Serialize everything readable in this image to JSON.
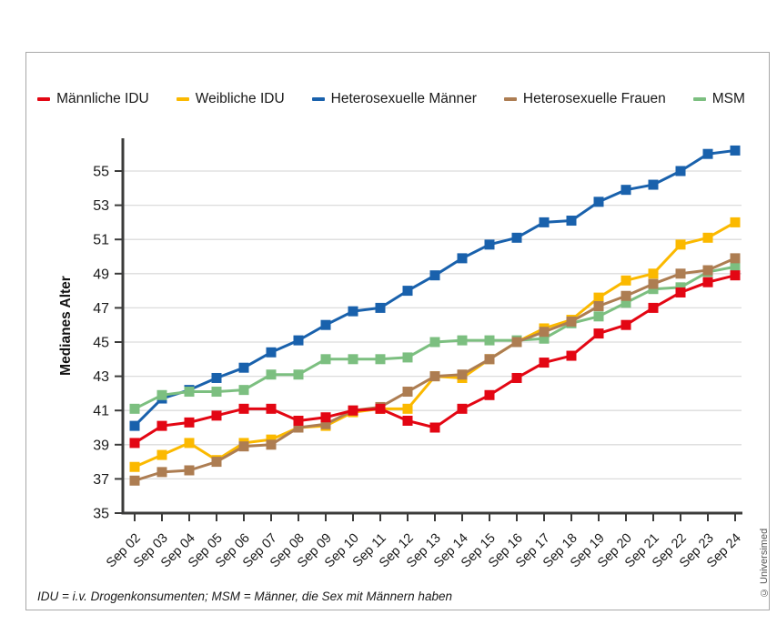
{
  "legend_note": "legend labels come from chart_data.series names",
  "footnote": "IDU = i.v. Drogenkonsumenten; MSM = Männer, die Sex mit Männern haben",
  "credit": "© Universimed",
  "chart_data": {
    "type": "line",
    "title": "",
    "xlabel": "",
    "ylabel": "Medianes Alter",
    "ylim": [
      35,
      56.8
    ],
    "yticks": [
      35,
      37,
      39,
      41,
      43,
      45,
      47,
      49,
      51,
      53,
      55
    ],
    "grid": true,
    "legend_position": "top",
    "marker": "square",
    "axis_color": "#3b3b3a",
    "gridline_color": "#dcdcdc",
    "tick_label_color": "#1a1a1a",
    "categories": [
      "Sep 02",
      "Sep 03",
      "Sep 04",
      "Sep 05",
      "Sep 06",
      "Sep 07",
      "Sep 08",
      "Sep 09",
      "Sep 10",
      "Sep 11",
      "Sep 12",
      "Sep 13",
      "Sep 14",
      "Sep 15",
      "Sep 16",
      "Sep 17",
      "Sep 18",
      "Sep 19",
      "Sep 20",
      "Sep 21",
      "Sep 22",
      "Sep 23",
      "Sep 24"
    ],
    "series": [
      {
        "name": "Männliche IDU",
        "color": "#e30613",
        "values": [
          39.1,
          40.1,
          40.3,
          40.7,
          41.1,
          41.1,
          40.4,
          40.6,
          41.0,
          41.1,
          40.4,
          40.0,
          41.1,
          41.9,
          42.9,
          43.8,
          44.2,
          45.5,
          46.0,
          47.0,
          47.9,
          48.5,
          48.9
        ]
      },
      {
        "name": "Weibliche IDU",
        "color": "#fbb900",
        "values": [
          37.7,
          38.4,
          39.1,
          38.1,
          39.1,
          39.3,
          40.0,
          40.1,
          40.9,
          41.1,
          41.1,
          43.0,
          42.9,
          44.0,
          45.0,
          45.8,
          46.3,
          47.6,
          48.6,
          49.0,
          50.7,
          51.1,
          52.0
        ]
      },
      {
        "name": "Heterosexuelle Männer",
        "color": "#1961ac",
        "values": [
          40.1,
          41.7,
          42.2,
          42.9,
          43.5,
          44.4,
          45.1,
          46.0,
          46.8,
          47.0,
          48.0,
          48.9,
          49.9,
          50.7,
          51.1,
          52.0,
          52.1,
          53.2,
          53.9,
          54.2,
          55.0,
          56.0,
          56.2
        ]
      },
      {
        "name": "Heterosexuelle Frauen",
        "color": "#ad7d52",
        "values": [
          36.9,
          37.4,
          37.5,
          38.0,
          38.9,
          39.0,
          40.0,
          40.2,
          41.0,
          41.2,
          42.1,
          43.0,
          43.1,
          44.0,
          45.0,
          45.6,
          46.2,
          47.1,
          47.7,
          48.4,
          49.0,
          49.2,
          49.9
        ]
      },
      {
        "name": "MSM",
        "color": "#7cbf80",
        "values": [
          41.1,
          41.9,
          42.1,
          42.1,
          42.2,
          43.1,
          43.1,
          44.0,
          44.0,
          44.0,
          44.1,
          45.0,
          45.1,
          45.1,
          45.1,
          45.2,
          46.1,
          46.5,
          47.3,
          48.1,
          48.2,
          49.1,
          49.4
        ]
      }
    ],
    "draw_order": [
      2,
      4,
      1,
      3,
      0
    ]
  }
}
